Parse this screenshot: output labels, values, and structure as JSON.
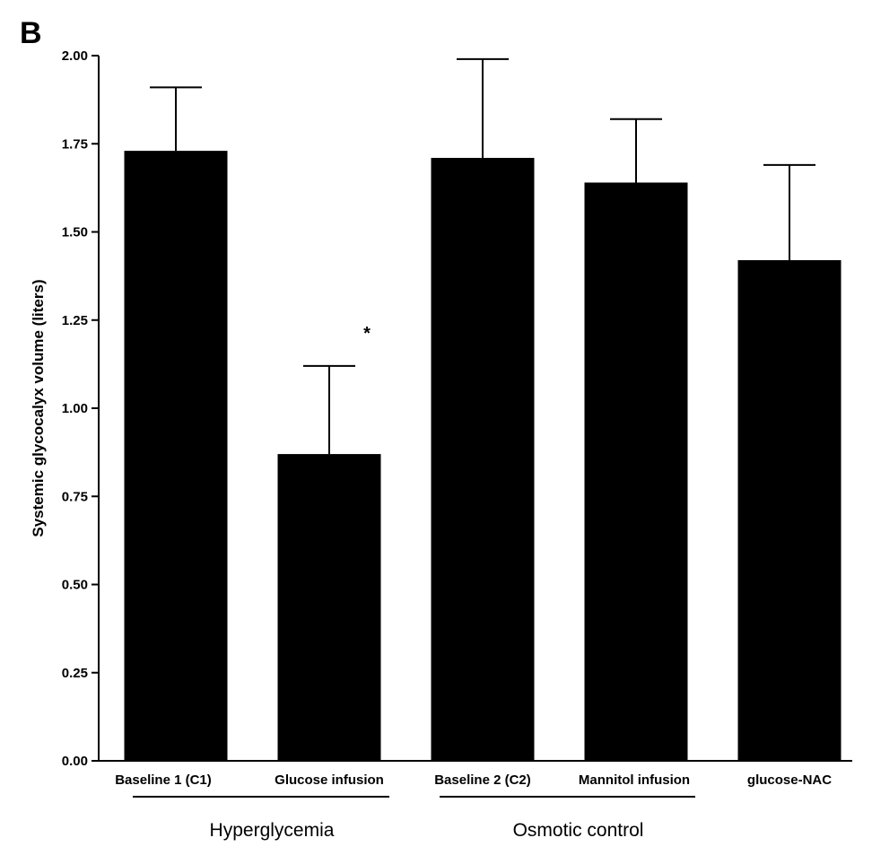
{
  "panel_label": "B",
  "chart_data": {
    "type": "bar",
    "title": "",
    "xlabel": "",
    "ylabel": "Systemic glycocalyx volume (liters)",
    "ylim": [
      0,
      2.0
    ],
    "yticks": [
      "0.00",
      "0.25",
      "0.50",
      "0.75",
      "1.00",
      "1.25",
      "1.50",
      "1.75",
      "2.00"
    ],
    "categories": [
      "Baseline 1 (C1)",
      "Glucose infusion",
      "Baseline 2 (C2)",
      "Mannitol infusion",
      "glucose-NAC"
    ],
    "values": [
      1.73,
      0.87,
      1.71,
      1.64,
      1.42
    ],
    "error_upper": [
      1.91,
      1.12,
      1.99,
      1.82,
      1.69
    ],
    "groups": [
      {
        "label": "Hyperglycemia",
        "categories": [
          0,
          1
        ]
      },
      {
        "label": "Osmotic control",
        "categories": [
          2,
          3
        ]
      }
    ],
    "annotations": [
      {
        "category": 1,
        "text": "*"
      }
    ],
    "bar_color": "#000000"
  }
}
